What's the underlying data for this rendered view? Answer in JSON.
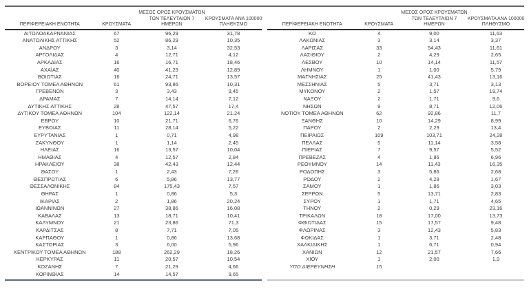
{
  "colors": {
    "text": "#3d3d3d",
    "top_rule": "#63676c",
    "header_rule": "#2d2f33",
    "bottom_rule_left": "#5f6b76",
    "bottom_rule_right": "#c4c8cb"
  },
  "table_headers": {
    "region": "ΠΕΡΙΦΕΡΕΙΑΚΗ ΕΝΟΤΗΤΑ",
    "cases": "ΚΡΟΥΣΜΑΤΑ",
    "avg7_line1": "ΜΕΣΟΣ ΟΡΟΣ ΚΡΟΥΣΜΑΤΩΝ",
    "avg7_line2": "ΤΩΝ ΤΕΛΕΥΤΑΙΩΝ 7",
    "avg7_line3": "ΗΜΕΡΩΝ",
    "per100k_line1": "ΚΡΟΥΣΜΑΤΑ ΑΝΑ 100000",
    "per100k_line2": "ΠΛΗΘΥΣΜΟ"
  },
  "styles": {
    "italic_regions": [
      "ΥΠΟ ΔΙΕΡΕΥΝΗΣΗ"
    ]
  },
  "left_table": {
    "rows": [
      [
        "ΑΙΤΩΛΟΑΚΑΡΝΑΝΙΑΣ",
        "67",
        "96,29",
        "31,78"
      ],
      [
        "ΑΝΑΤΟΛΙΚΗΣ ΑΤΤΙΚΗΣ",
        "52",
        "86,29",
        "10,35"
      ],
      [
        "ΑΝΔΡΟΥ",
        "3",
        "3,14",
        "32,53"
      ],
      [
        "ΑΡΓΟΛΙΔΑΣ",
        "4",
        "12,71",
        "4,12"
      ],
      [
        "ΑΡΚΑΔΙΑΣ",
        "16",
        "16,71",
        "18,46"
      ],
      [
        "ΑΧΑΪΑΣ",
        "40",
        "41,29",
        "12,89"
      ],
      [
        "ΒΟΙΩΤΙΑΣ",
        "16",
        "24,71",
        "13,57"
      ],
      [
        "ΒΟΡΕΙΟΥ ΤΟΜΕΑ ΑΘΗΝΩΝ",
        "61",
        "93,86",
        "10,31"
      ],
      [
        "ΓΡΕΒΕΝΩΝ",
        "3",
        "3,43",
        "9,45"
      ],
      [
        "ΔΡΑΜΑΣ",
        "7",
        "14,14",
        "7,12"
      ],
      [
        "ΔΥΤΙΚΗΣ ΑΤΤΙΚΗΣ",
        "28",
        "47,57",
        "17,4"
      ],
      [
        "ΔΥΤΙΚΟΥ ΤΟΜΕΑ ΑΘΗΝΩΝ",
        "104",
        "122,14",
        "21,24"
      ],
      [
        "ΕΒΡΟΥ",
        "10",
        "21,71",
        "6,76"
      ],
      [
        "ΕΥΒΟΙΑΣ",
        "11",
        "28,14",
        "5,22"
      ],
      [
        "ΕΥΡΥΤΑΝΙΑΣ",
        "1",
        "0,71",
        "4,98"
      ],
      [
        "ΖΑΚΥΝΘΟΥ",
        "1",
        "1,14",
        "2,45"
      ],
      [
        "ΗΛΕΙΑΣ",
        "16",
        "13,57",
        "10,04"
      ],
      [
        "ΗΜΑΘΙΑΣ",
        "4",
        "12,57",
        "2,84"
      ],
      [
        "ΗΡΑΚΛΕΙΟΥ",
        "38",
        "42,43",
        "12,44"
      ],
      [
        "ΘΑΣΟΥ",
        "1",
        "2,43",
        "7,26"
      ],
      [
        "ΘΕΣΠΡΩΤΙΑΣ",
        "6",
        "5,86",
        "13,77"
      ],
      [
        "ΘΕΣΣΑΛΟΝΙΚΗΣ",
        "84",
        "175,43",
        "7,57"
      ],
      [
        "ΘΗΡΑΣ",
        "1",
        "0,86",
        "5,3"
      ],
      [
        "ΙΚΑΡΙΑΣ",
        "2",
        "1,86",
        "20,24"
      ],
      [
        "ΙΩΑΝΝΙΝΩΝ",
        "27",
        "38,86",
        "16,08"
      ],
      [
        "ΚΑΒΑΛΑΣ",
        "13",
        "18,71",
        "10,41"
      ],
      [
        "ΚΑΛΥΜΝΟΥ",
        "21",
        "23,86",
        "71,3"
      ],
      [
        "ΚΑΡΔΙΤΣΑΣ",
        "8",
        "7,71",
        "7,05"
      ],
      [
        "ΚΑΡΠΑΘΟΥ",
        "1",
        "0,86",
        "13,68"
      ],
      [
        "ΚΑΣΤΟΡΙΑΣ",
        "3",
        "6,00",
        "5,96"
      ],
      [
        "ΚΕΝΤΡΙΚΟΥ ΤΟΜΕΑ ΑΘΗΝΩΝ",
        "188",
        "262,29",
        "18,26"
      ],
      [
        "ΚΕΡΚΥΡΑΣ",
        "11",
        "20,57",
        "10,54"
      ],
      [
        "ΚΟΖΑΝΗΣ",
        "7",
        "21,29",
        "4,66"
      ],
      [
        "ΚΟΡΙΝΘΙΑΣ",
        "14",
        "14,57",
        "9,65"
      ]
    ]
  },
  "right_table": {
    "rows": [
      [
        "ΚΩ",
        "4",
        "9,00",
        "11,63"
      ],
      [
        "ΛΑΚΩΝΙΑΣ",
        "3",
        "3,14",
        "3,37"
      ],
      [
        "ΛΑΡΙΣΑΣ",
        "33",
        "54,43",
        "11,61"
      ],
      [
        "ΛΑΣΙΘΙΟΥ",
        "2",
        "4,29",
        "2,65"
      ],
      [
        "ΛΕΣΒΟΥ",
        "10",
        "14,14",
        "11,57"
      ],
      [
        "ΛΗΜΝΟΥ",
        "1",
        "1,00",
        "5,79"
      ],
      [
        "ΜΑΓΝΗΣΙΑΣ",
        "25",
        "41,43",
        "13,16"
      ],
      [
        "ΜΕΣΣΗΝΙΑΣ",
        "5",
        "3,71",
        "3,13"
      ],
      [
        "ΜΥΚΟΝΟΥ",
        "2",
        "1,57",
        "19,74"
      ],
      [
        "ΝΑΞΟΥ",
        "2",
        "1,71",
        "9,6"
      ],
      [
        "ΝΗΣΩΝ",
        "9",
        "8,71",
        "12,06"
      ],
      [
        "ΝΟΤΙΟΥ ΤΟΜΕΑ ΑΘΗΝΩΝ",
        "62",
        "92,86",
        "11,7"
      ],
      [
        "ΞΑΝΘΗΣ",
        "10",
        "14,29",
        "8,99"
      ],
      [
        "ΠΑΡΟΥ",
        "2",
        "2,29",
        "13,4"
      ],
      [
        "ΠΕΙΡΑΙΩΣ",
        "109",
        "103,71",
        "24,28"
      ],
      [
        "ΠΕΛΛΑΣ",
        "5",
        "11,14",
        "3,58"
      ],
      [
        "ΠΙΕΡΙΑΣ",
        "7",
        "9,57",
        "5,52"
      ],
      [
        "ΠΡΕΒΕΖΑΣ",
        "4",
        "1,86",
        "6,96"
      ],
      [
        "ΡΕΘΥΜΝΟΥ",
        "14",
        "11,43",
        "16,35"
      ],
      [
        "ΡΟΔΟΠΗΣ",
        "3",
        "5,86",
        "2,68"
      ],
      [
        "ΡΟΔΟΥ",
        "2",
        "4,29",
        "1,67"
      ],
      [
        "ΣΑΜΟΥ",
        "1",
        "1,86",
        "3,03"
      ],
      [
        "ΣΕΡΡΩΝ",
        "5",
        "13,71",
        "2,83"
      ],
      [
        "ΣΥΡΟΥ",
        "1",
        "1,71",
        "4,65"
      ],
      [
        "ΤΗΝΟΥ",
        "2",
        "0,29",
        "23,16"
      ],
      [
        "ΤΡΙΚΑΛΩΝ",
        "18",
        "17,00",
        "13,73"
      ],
      [
        "ΦΘΙΩΤΙΔΑΣ",
        "15",
        "17,57",
        "9,48"
      ],
      [
        "ΦΛΩΡΙΝΑΣ",
        "3",
        "12,43",
        "5,83"
      ],
      [
        "ΦΩΚΙΔΑΣ",
        "1",
        "3,71",
        "2,48"
      ],
      [
        "ΧΑΛΚΙΔΙΚΗΣ",
        "1",
        "6,71",
        "0,94"
      ],
      [
        "ΧΑΝΙΩΝ",
        "12",
        "21,57",
        "7,66"
      ],
      [
        "ΧΙΟΥ",
        "1",
        "2,00",
        "1,9"
      ],
      [
        "ΥΠΟ ΔΙΕΡΕΥΝΗΣΗ",
        "15",
        "",
        ""
      ]
    ]
  }
}
